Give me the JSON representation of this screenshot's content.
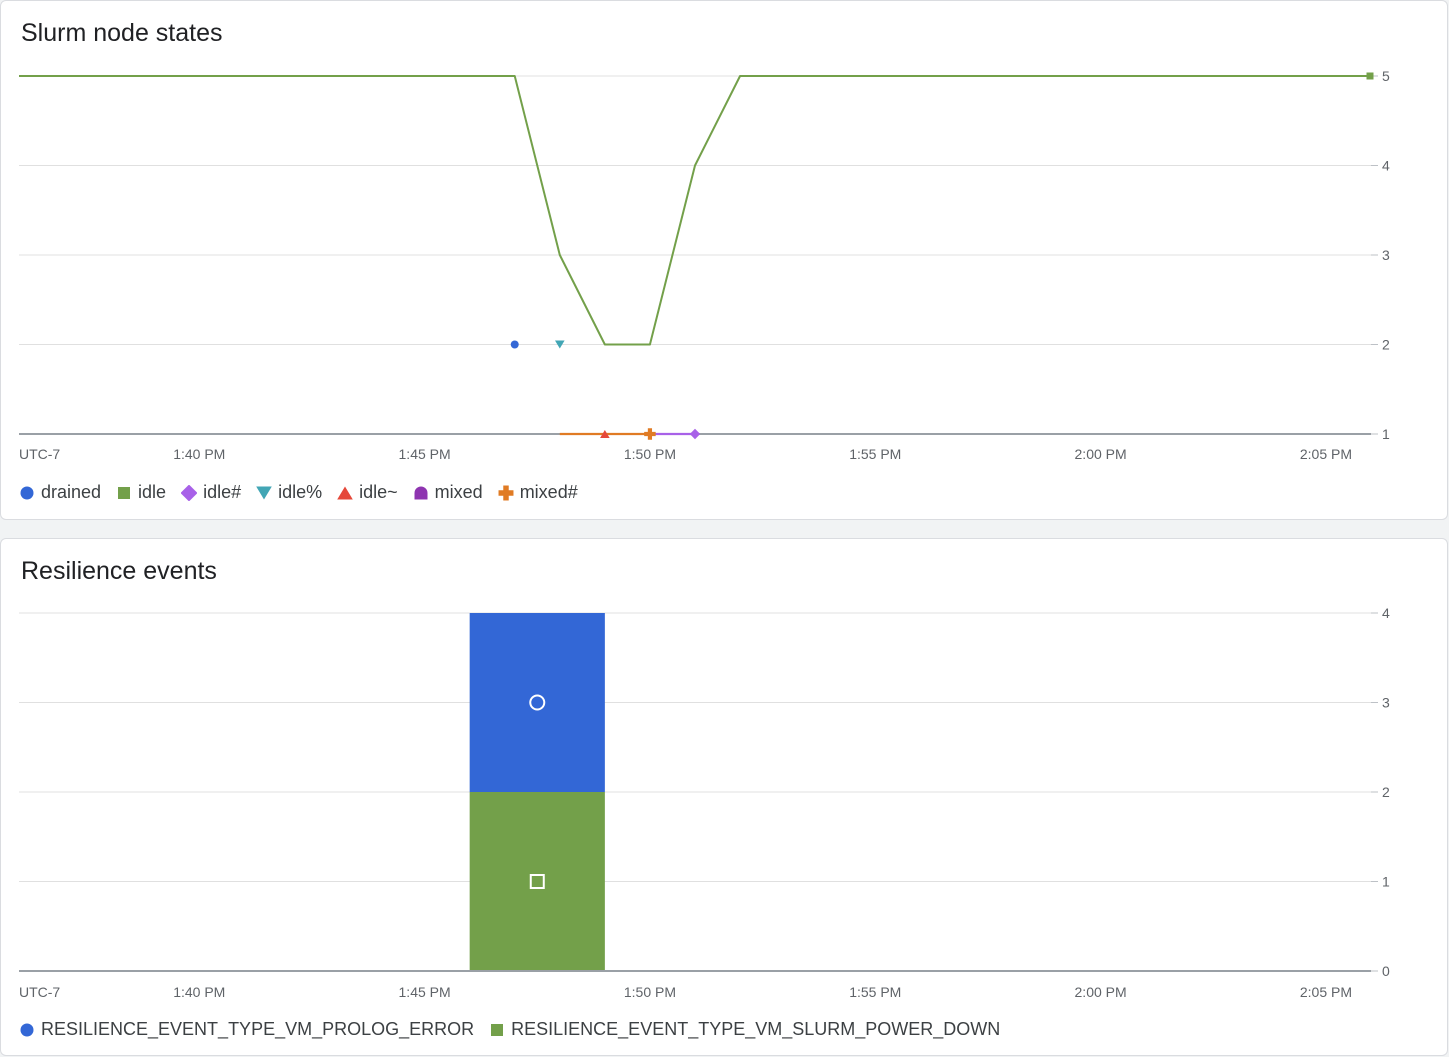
{
  "charts": {
    "node_states": {
      "title": "Slurm node states",
      "timezone_label": "UTC-7",
      "legend": [
        {
          "label": "drained",
          "color": "#3367d6",
          "icon": "circle-icon"
        },
        {
          "label": "idle",
          "color": "#73a04a",
          "icon": "square-icon"
        },
        {
          "label": "idle#",
          "color": "#a861e8",
          "icon": "diamond-icon"
        },
        {
          "label": "idle%",
          "color": "#42a6b5",
          "icon": "triangle-down-icon"
        },
        {
          "label": "idle~",
          "color": "#e5483a",
          "icon": "triangle-up-icon"
        },
        {
          "label": "mixed",
          "color": "#8e34b0",
          "icon": "half-circle-icon"
        },
        {
          "label": "mixed#",
          "color": "#e07b24",
          "icon": "plus-icon"
        }
      ]
    },
    "resilience": {
      "title": "Resilience events",
      "timezone_label": "UTC-7",
      "legend": [
        {
          "label": "RESILIENCE_EVENT_TYPE_VM_PROLOG_ERROR",
          "color": "#3367d6",
          "icon": "circle-icon"
        },
        {
          "label": "RESILIENCE_EVENT_TYPE_VM_SLURM_POWER_DOWN",
          "color": "#73a04a",
          "icon": "square-icon"
        }
      ]
    }
  },
  "chart_data": [
    {
      "type": "line",
      "title": "Slurm node states",
      "x_unit": "time (UTC-7)",
      "x_ticks": [
        "1:40 PM",
        "1:45 PM",
        "1:50 PM",
        "1:55 PM",
        "2:00 PM",
        "2:05 PM"
      ],
      "xlim": [
        "1:36 PM",
        "2:06 PM"
      ],
      "y_ticks": [
        1,
        2,
        3,
        4,
        5
      ],
      "ylim": [
        1,
        5
      ],
      "y_axis_side": "right",
      "grid": true,
      "legend_position": "bottom-left",
      "series": [
        {
          "name": "drained",
          "color": "#3367d6",
          "marker": "circle",
          "points": [
            [
              "1:47 PM",
              2
            ]
          ]
        },
        {
          "name": "idle",
          "color": "#73a04a",
          "marker": "square",
          "points": [
            [
              "1:36 PM",
              5
            ],
            [
              "1:47 PM",
              5
            ],
            [
              "1:48 PM",
              3
            ],
            [
              "1:49 PM",
              2
            ],
            [
              "1:50 PM",
              2
            ],
            [
              "1:51 PM",
              4
            ],
            [
              "1:52 PM",
              5
            ],
            [
              "2:06 PM",
              5
            ]
          ]
        },
        {
          "name": "idle#",
          "color": "#a861e8",
          "marker": "diamond",
          "points": [
            [
              "1:50 PM",
              1
            ],
            [
              "1:51 PM",
              1
            ]
          ]
        },
        {
          "name": "idle%",
          "color": "#42a6b5",
          "marker": "triangle-down",
          "points": [
            [
              "1:48 PM",
              2
            ]
          ]
        },
        {
          "name": "idle~",
          "color": "#e5483a",
          "marker": "triangle-up",
          "points": [
            [
              "1:49 PM",
              1
            ]
          ]
        },
        {
          "name": "mixed",
          "color": "#8e34b0",
          "marker": "half-circle",
          "points": []
        },
        {
          "name": "mixed#",
          "color": "#e07b24",
          "marker": "plus",
          "points": [
            [
              "1:48 PM",
              1
            ],
            [
              "1:49 PM",
              1
            ],
            [
              "1:50 PM",
              1
            ]
          ]
        }
      ]
    },
    {
      "type": "bar",
      "stacked": true,
      "title": "Resilience events",
      "x_unit": "time (UTC-7)",
      "x_ticks": [
        "1:40 PM",
        "1:45 PM",
        "1:50 PM",
        "1:55 PM",
        "2:00 PM",
        "2:05 PM"
      ],
      "xlim": [
        "1:36 PM",
        "2:06 PM"
      ],
      "y_ticks": [
        0,
        1,
        2,
        3,
        4
      ],
      "ylim": [
        0,
        4
      ],
      "y_axis_side": "right",
      "grid": true,
      "legend_position": "bottom-left",
      "bars": [
        {
          "x_start": "1:46 PM",
          "x_end": "1:49 PM",
          "stack": [
            {
              "series": "RESILIENCE_EVENT_TYPE_VM_SLURM_POWER_DOWN",
              "value": 2,
              "color": "#73a04a",
              "marker": "square"
            },
            {
              "series": "RESILIENCE_EVENT_TYPE_VM_PROLOG_ERROR",
              "value": 2,
              "color": "#3367d6",
              "marker": "circle"
            }
          ]
        }
      ]
    }
  ]
}
